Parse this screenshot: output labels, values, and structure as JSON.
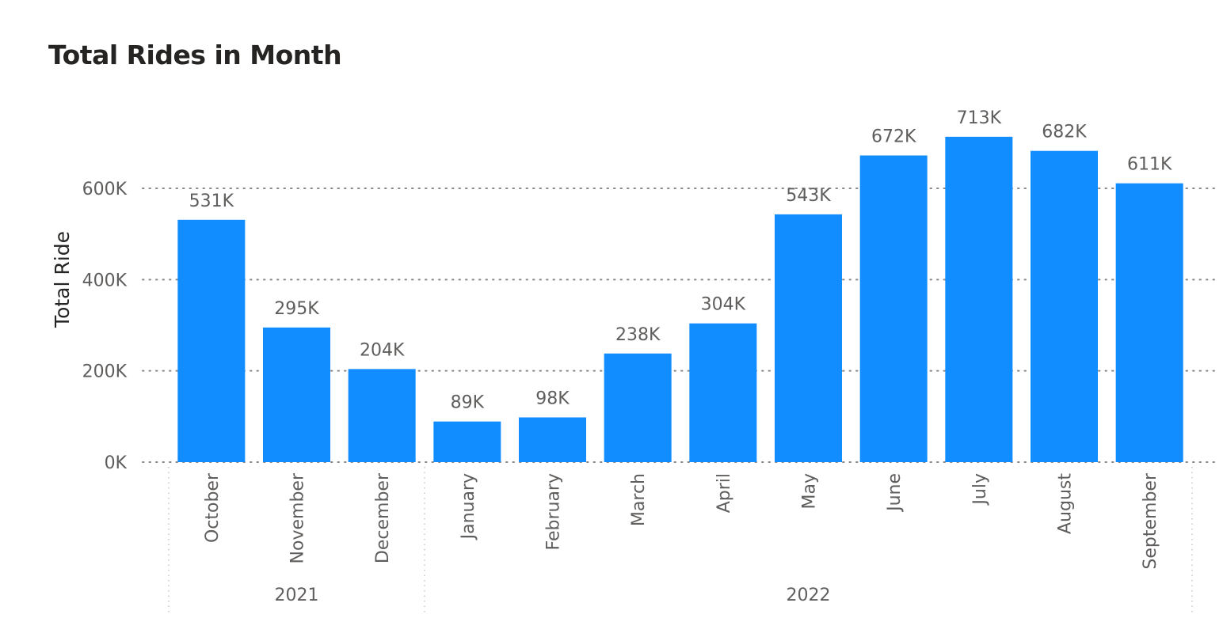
{
  "chart_data": {
    "type": "bar",
    "title": "Total Rides in Month",
    "xlabel": "",
    "ylabel": "Total Ride",
    "ylim": [
      0,
      720000
    ],
    "y_ticks": [
      {
        "value": 0,
        "label": "0K"
      },
      {
        "value": 200000,
        "label": "200K"
      },
      {
        "value": 400000,
        "label": "400K"
      },
      {
        "value": 600000,
        "label": "600K"
      }
    ],
    "grid": true,
    "bar_color": "#118dff",
    "categories": [
      "October",
      "November",
      "December",
      "January",
      "February",
      "March",
      "April",
      "May",
      "June",
      "July",
      "August",
      "September"
    ],
    "values": [
      531000,
      295000,
      204000,
      89000,
      98000,
      238000,
      304000,
      543000,
      672000,
      713000,
      682000,
      611000
    ],
    "data_labels": [
      "531K",
      "295K",
      "204K",
      "89K",
      "98K",
      "238K",
      "304K",
      "543K",
      "672K",
      "713K",
      "682K",
      "611K"
    ],
    "groups": [
      {
        "label": "2021",
        "count": 3
      },
      {
        "label": "2022",
        "count": 9
      }
    ]
  }
}
